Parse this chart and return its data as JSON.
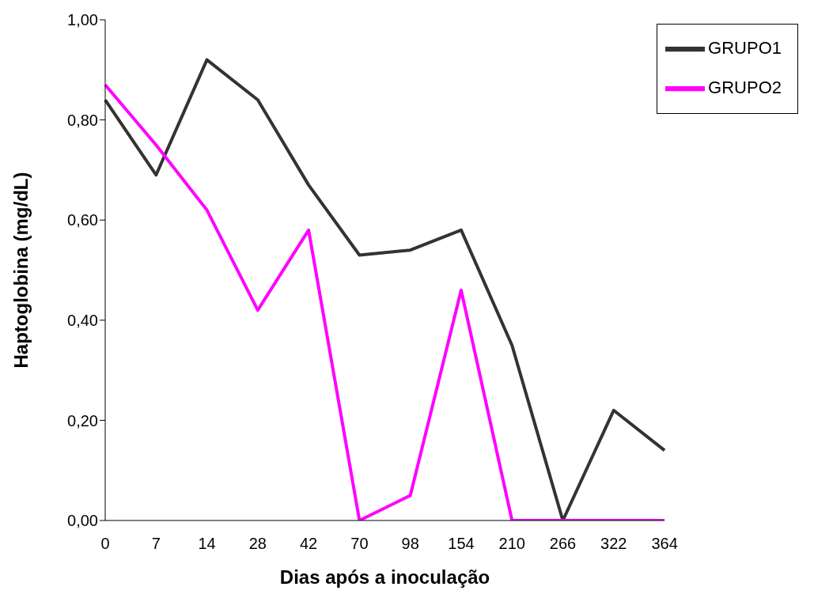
{
  "chart_data": {
    "type": "line",
    "xlabel": "Dias após a inoculação",
    "ylabel": "Haptoglobina (mg/dL)",
    "categories": [
      "0",
      "7",
      "14",
      "28",
      "42",
      "70",
      "98",
      "154",
      "210",
      "266",
      "322",
      "364"
    ],
    "series": [
      {
        "name": "GRUPO1",
        "color": "#333333",
        "values": [
          0.84,
          0.69,
          0.92,
          0.84,
          0.67,
          0.53,
          0.54,
          0.58,
          0.35,
          0.0,
          0.22,
          0.14
        ]
      },
      {
        "name": "GRUPO2",
        "color": "#ff00ff",
        "values": [
          0.87,
          0.75,
          0.62,
          0.42,
          0.58,
          0.0,
          0.05,
          0.46,
          0.0,
          0.0,
          0.0,
          0.0
        ]
      }
    ],
    "ylim": [
      0,
      1
    ],
    "yticks": [
      {
        "value": 0,
        "label": "0,00"
      },
      {
        "value": 0.2,
        "label": "0,20"
      },
      {
        "value": 0.4,
        "label": "0,40"
      },
      {
        "value": 0.6,
        "label": "0,60"
      },
      {
        "value": 0.8,
        "label": "0,80"
      },
      {
        "value": 1,
        "label": "1,00"
      }
    ],
    "grid": false,
    "legend": "top right",
    "marker": "none",
    "line_style": "solid"
  }
}
